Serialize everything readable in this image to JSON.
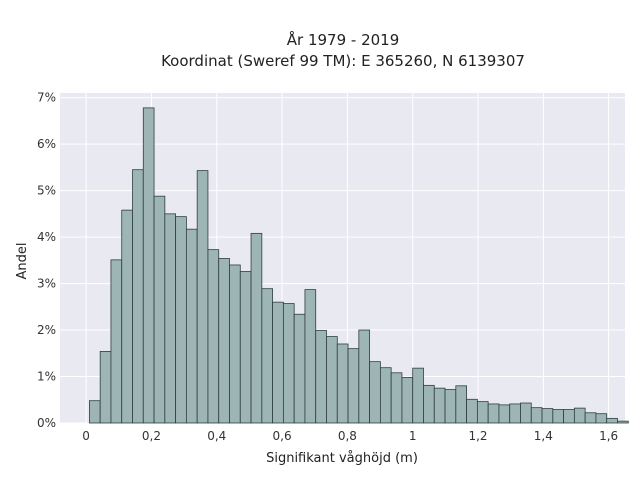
{
  "chart_data": {
    "type": "bar",
    "title": "År 1979 - 2019",
    "subtitle": "Koordinat (Sweref 99 TM): E 365260, N 6139307",
    "xlabel": "Signifikant våghöjd (m)",
    "ylabel": "Andel",
    "xlim": [
      -0.08,
      1.65
    ],
    "ylim": [
      0,
      0.071
    ],
    "grid": true,
    "x_ticks": [
      {
        "value": 0,
        "label": "0"
      },
      {
        "value": 0.2,
        "label": "0,2"
      },
      {
        "value": 0.4,
        "label": "0,4"
      },
      {
        "value": 0.6,
        "label": "0,6"
      },
      {
        "value": 0.8,
        "label": "0,8"
      },
      {
        "value": 1.0,
        "label": "1"
      },
      {
        "value": 1.2,
        "label": "1,2"
      },
      {
        "value": 1.4,
        "label": "1,4"
      },
      {
        "value": 1.6,
        "label": "1,6"
      }
    ],
    "y_ticks": [
      {
        "value": 0,
        "label": "0%"
      },
      {
        "value": 0.01,
        "label": "1%"
      },
      {
        "value": 0.02,
        "label": "2%"
      },
      {
        "value": 0.03,
        "label": "3%"
      },
      {
        "value": 0.04,
        "label": "4%"
      },
      {
        "value": 0.05,
        "label": "5%"
      },
      {
        "value": 0.06,
        "label": "6%"
      },
      {
        "value": 0.07,
        "label": "7%"
      }
    ],
    "bin_start": 0.01,
    "bin_width": 0.033,
    "values": [
      0.0048,
      0.0154,
      0.0351,
      0.0458,
      0.0545,
      0.0678,
      0.0488,
      0.045,
      0.0444,
      0.0417,
      0.0543,
      0.0373,
      0.0354,
      0.034,
      0.0326,
      0.0408,
      0.0289,
      0.026,
      0.0257,
      0.0234,
      0.0287,
      0.0199,
      0.0186,
      0.017,
      0.016,
      0.02,
      0.0132,
      0.0119,
      0.0108,
      0.0098,
      0.0118,
      0.0081,
      0.0075,
      0.0072,
      0.008,
      0.0051,
      0.0046,
      0.0041,
      0.0039,
      0.0041,
      0.0043,
      0.0033,
      0.0031,
      0.0029,
      0.0029,
      0.0032,
      0.0022,
      0.002,
      0.001,
      0.0004
    ],
    "colors": {
      "bar_fill": "#9db5b4",
      "bar_stroke": "#2f3f3e",
      "plot_background": "#e9e9f1",
      "grid": "#ffffff"
    }
  }
}
